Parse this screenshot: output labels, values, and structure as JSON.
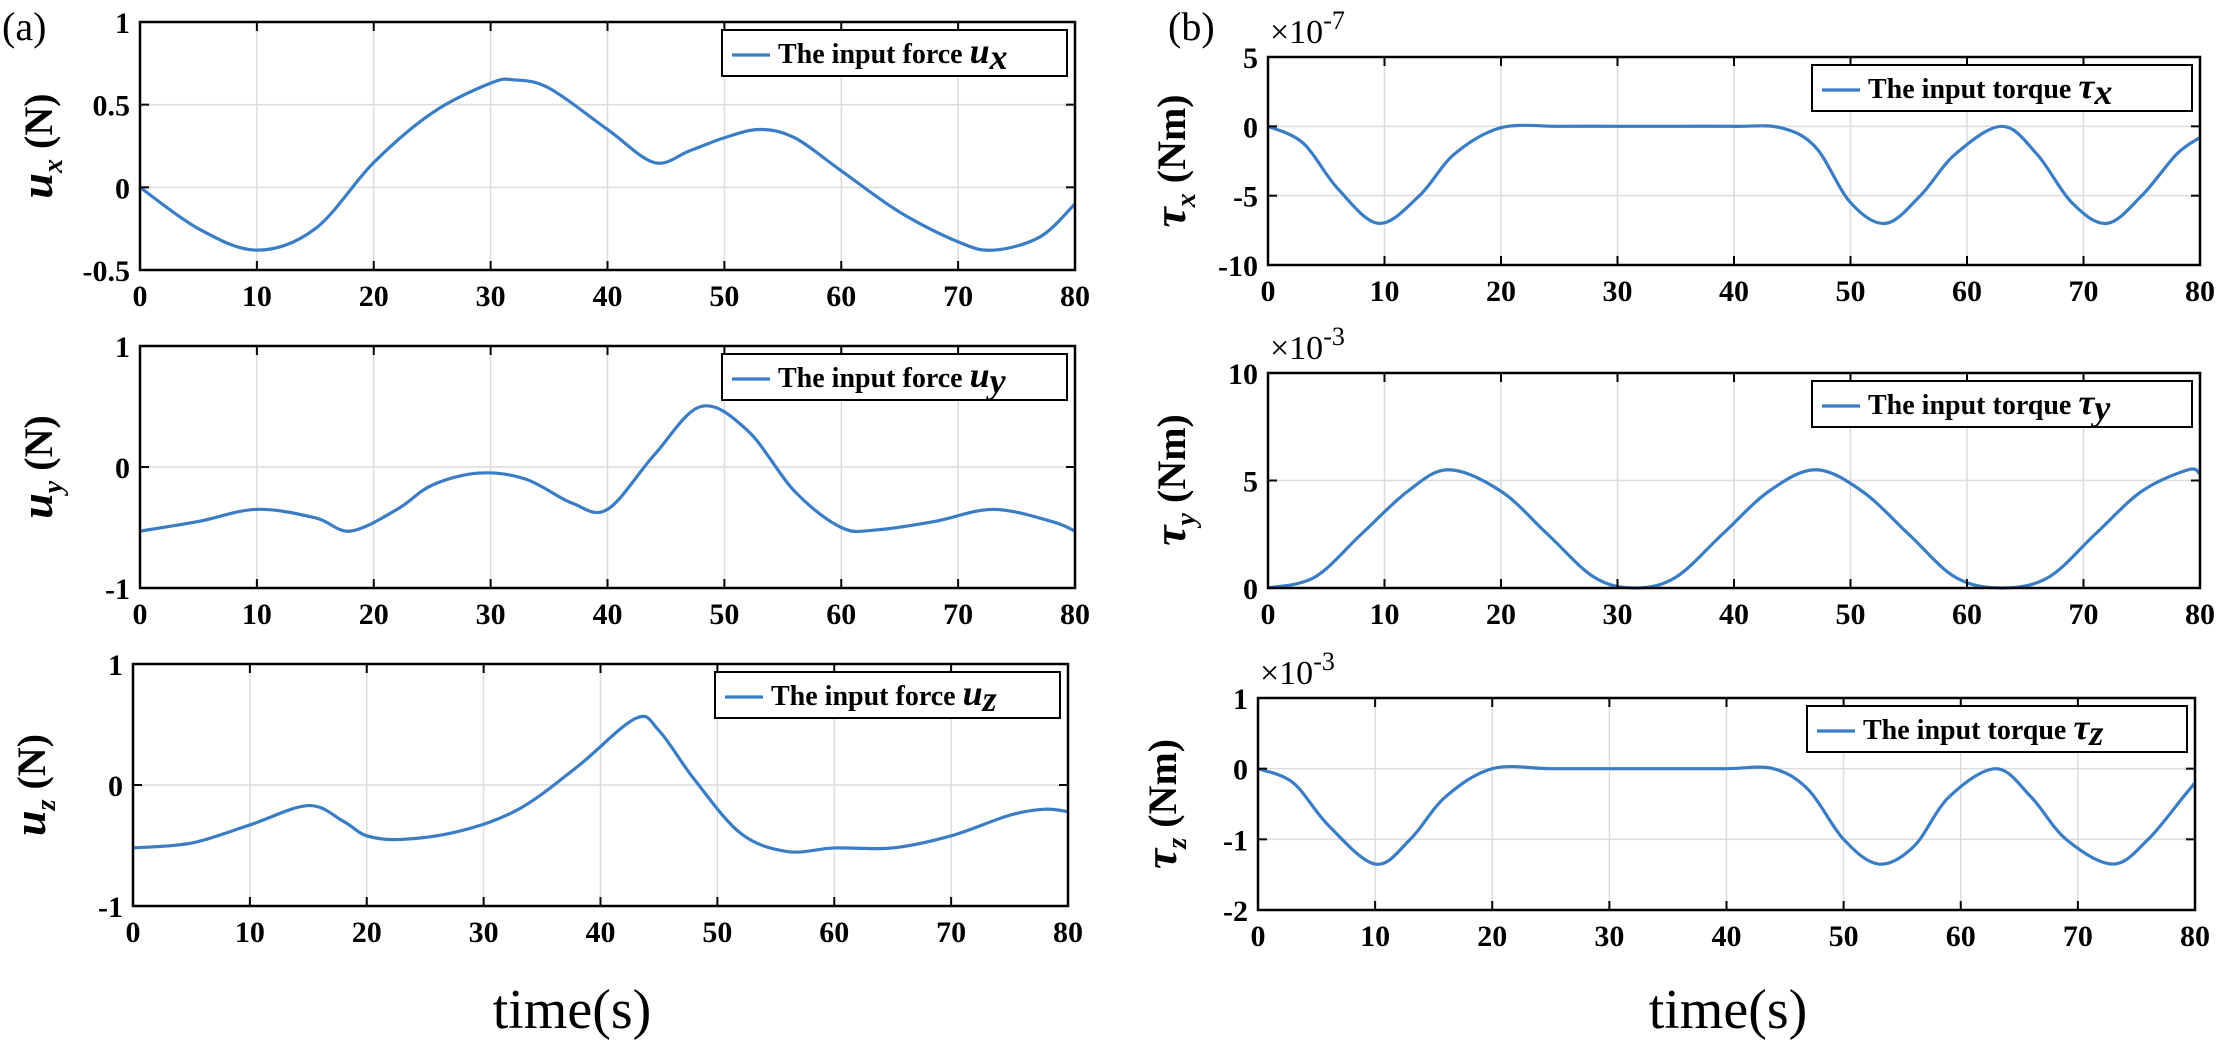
{
  "panel_labels": [
    "(a)",
    "(b)"
  ],
  "xlabel": "time(s)",
  "colors": {
    "line": "#3a7dc4",
    "grid": "#dcdcdc",
    "axis": "#000000"
  },
  "chart_data": [
    {
      "id": "ux",
      "type": "line",
      "panel": "(a)",
      "ylabel_sym": "u",
      "ylabel_sub": "x",
      "ylabel_unit": "(N)",
      "legend_text": "The input force",
      "legend_sym": "u",
      "legend_sub": "x",
      "xlim": [
        0,
        80
      ],
      "ylim": [
        -0.5,
        1
      ],
      "xticks": [
        0,
        10,
        20,
        30,
        40,
        50,
        60,
        70,
        80
      ],
      "yticks": [
        -0.5,
        0,
        0.5,
        1
      ],
      "ytick_labels": [
        "-0.5",
        "0",
        "0.5",
        "1"
      ],
      "exponent": "",
      "x": [
        0,
        5,
        10,
        15,
        20,
        25,
        30,
        32,
        35,
        40,
        44,
        47,
        50,
        53,
        56,
        60,
        65,
        70,
        73,
        77,
        80
      ],
      "y": [
        0,
        -0.25,
        -0.38,
        -0.25,
        0.15,
        0.45,
        0.63,
        0.65,
        0.6,
        0.35,
        0.15,
        0.22,
        0.3,
        0.35,
        0.3,
        0.1,
        -0.15,
        -0.33,
        -0.38,
        -0.3,
        -0.1
      ]
    },
    {
      "id": "uy",
      "type": "line",
      "panel": "(a)",
      "ylabel_sym": "u",
      "ylabel_sub": "y",
      "ylabel_unit": "(N)",
      "legend_text": "The input force",
      "legend_sym": "u",
      "legend_sub": "y",
      "xlim": [
        0,
        80
      ],
      "ylim": [
        -1,
        1
      ],
      "xticks": [
        0,
        10,
        20,
        30,
        40,
        50,
        60,
        70,
        80
      ],
      "yticks": [
        -1,
        0,
        1
      ],
      "ytick_labels": [
        "-1",
        "0",
        "1"
      ],
      "exponent": "",
      "x": [
        0,
        5,
        10,
        15,
        18,
        22,
        25,
        29,
        33,
        37,
        40,
        44,
        48,
        52,
        56,
        60,
        63,
        68,
        73,
        78,
        80
      ],
      "y": [
        -0.53,
        -0.45,
        -0.35,
        -0.42,
        -0.53,
        -0.35,
        -0.15,
        -0.05,
        -0.1,
        -0.3,
        -0.35,
        0.1,
        0.5,
        0.3,
        -0.2,
        -0.5,
        -0.52,
        -0.45,
        -0.35,
        -0.45,
        -0.53
      ]
    },
    {
      "id": "uz",
      "type": "line",
      "panel": "(a)",
      "ylabel_sym": "u",
      "ylabel_sub": "z",
      "ylabel_unit": "(N)",
      "legend_text": "The input force",
      "legend_sym": "u",
      "legend_sub": "z",
      "xlim": [
        0,
        80
      ],
      "ylim": [
        -1,
        1
      ],
      "xticks": [
        0,
        10,
        20,
        30,
        40,
        50,
        60,
        70,
        80
      ],
      "yticks": [
        -1,
        0,
        1
      ],
      "ytick_labels": [
        "-1",
        "0",
        "1"
      ],
      "exponent": "",
      "x": [
        0,
        5,
        10,
        15,
        18,
        20,
        23,
        28,
        33,
        38,
        43,
        45,
        48,
        52,
        56,
        60,
        65,
        70,
        75,
        78,
        80
      ],
      "y": [
        -0.52,
        -0.48,
        -0.33,
        -0.17,
        -0.3,
        -0.42,
        -0.45,
        -0.38,
        -0.2,
        0.15,
        0.55,
        0.45,
        0.05,
        -0.4,
        -0.55,
        -0.52,
        -0.52,
        -0.42,
        -0.25,
        -0.2,
        -0.22
      ]
    },
    {
      "id": "tx",
      "type": "line",
      "panel": "(b)",
      "ylabel_sym": "τ",
      "ylabel_sub": "x",
      "ylabel_unit": "(Nm)",
      "legend_text": "The input torque",
      "legend_sym": "τ",
      "legend_sub": "x",
      "xlim": [
        0,
        80
      ],
      "ylim": [
        -10,
        5
      ],
      "xticks": [
        0,
        10,
        20,
        30,
        40,
        50,
        60,
        70,
        80
      ],
      "yticks": [
        -10,
        -5,
        0,
        5
      ],
      "ytick_labels": [
        "-10",
        "-5",
        "0",
        "5"
      ],
      "exponent": "-7",
      "x": [
        0,
        3,
        6,
        9.5,
        13,
        16,
        20,
        25,
        30,
        35,
        40,
        44,
        47,
        50,
        53,
        56,
        59,
        63,
        66,
        69,
        72,
        75,
        78,
        80
      ],
      "y": [
        0,
        -1.2,
        -4.5,
        -7,
        -5,
        -2,
        -0.1,
        0,
        0,
        0,
        0,
        -0.1,
        -1.5,
        -5.5,
        -7,
        -5,
        -2,
        0,
        -2,
        -5.5,
        -7,
        -5,
        -2,
        -0.8
      ]
    },
    {
      "id": "ty",
      "type": "line",
      "panel": "(b)",
      "ylabel_sym": "τ",
      "ylabel_sub": "y",
      "ylabel_unit": "(Nm)",
      "legend_text": "The input torque",
      "legend_sym": "τ",
      "legend_sub": "y",
      "xlim": [
        0,
        80
      ],
      "ylim": [
        0,
        10
      ],
      "xticks": [
        0,
        10,
        20,
        30,
        40,
        50,
        60,
        70,
        80
      ],
      "yticks": [
        0,
        5,
        10
      ],
      "ytick_labels": [
        "0",
        "5",
        "10"
      ],
      "exponent": "-3",
      "x": [
        0,
        4,
        8,
        12,
        15.5,
        20,
        24,
        28,
        31.5,
        35,
        39,
        43,
        47,
        51,
        55,
        59,
        63,
        67,
        71,
        75,
        79,
        80
      ],
      "y": [
        0,
        0.5,
        2.5,
        4.5,
        5.5,
        4.5,
        2.5,
        0.5,
        0,
        0.5,
        2.5,
        4.5,
        5.5,
        4.5,
        2.5,
        0.5,
        0,
        0.5,
        2.5,
        4.5,
        5.5,
        5.3
      ]
    },
    {
      "id": "tz",
      "type": "line",
      "panel": "(b)",
      "ylabel_sym": "τ",
      "ylabel_sub": "z",
      "ylabel_unit": "(Nm)",
      "legend_text": "The input torque",
      "legend_sym": "τ",
      "legend_sub": "z",
      "xlim": [
        0,
        80
      ],
      "ylim": [
        -2,
        1
      ],
      "xticks": [
        0,
        10,
        20,
        30,
        40,
        50,
        60,
        70,
        80
      ],
      "yticks": [
        -2,
        -1,
        0,
        1
      ],
      "ytick_labels": [
        "-2",
        "-1",
        "0",
        "1"
      ],
      "exponent": "-3",
      "x": [
        0,
        3,
        6,
        10,
        13,
        16,
        20,
        25,
        30,
        35,
        40,
        44,
        47,
        50,
        53,
        56,
        59,
        63,
        66,
        69,
        73,
        76,
        79,
        80
      ],
      "y": [
        0,
        -0.2,
        -0.8,
        -1.35,
        -1,
        -0.4,
        0,
        0,
        0,
        0,
        0,
        0,
        -0.3,
        -1,
        -1.35,
        -1.1,
        -0.4,
        0,
        -0.4,
        -1,
        -1.35,
        -1,
        -0.4,
        -0.2
      ]
    }
  ]
}
